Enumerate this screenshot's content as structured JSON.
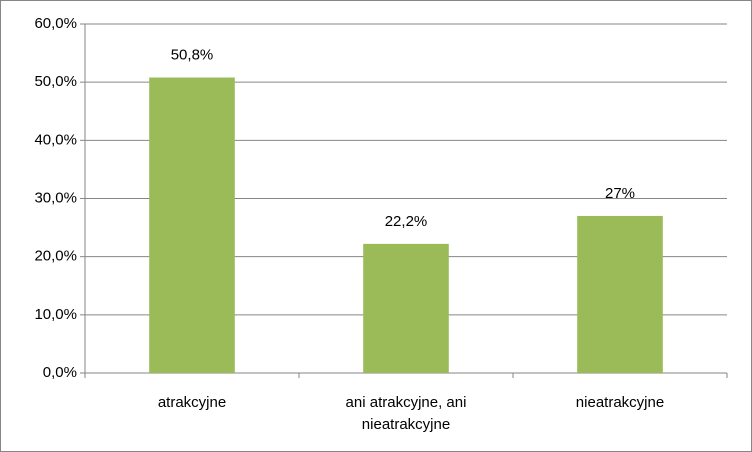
{
  "chart_data": {
    "type": "bar",
    "categories": [
      "atrakcyjne",
      "ani atrakcyjne, ani nieatrakcyjne",
      "nieatrakcyjne"
    ],
    "values": [
      50.8,
      22.2,
      27
    ],
    "value_labels": [
      "50,8%",
      "22,2%",
      "27%"
    ],
    "color": "#9bbb59",
    "ylim": [
      0,
      60
    ],
    "yticks": [
      {
        "value": 0,
        "label": "0,0%"
      },
      {
        "value": 10,
        "label": "10,0%"
      },
      {
        "value": 20,
        "label": "20,0%"
      },
      {
        "value": 30,
        "label": "30,0%"
      },
      {
        "value": 40,
        "label": "40,0%"
      },
      {
        "value": 50,
        "label": "50,0%"
      },
      {
        "value": 60,
        "label": "60,0%"
      }
    ],
    "grid": true
  }
}
